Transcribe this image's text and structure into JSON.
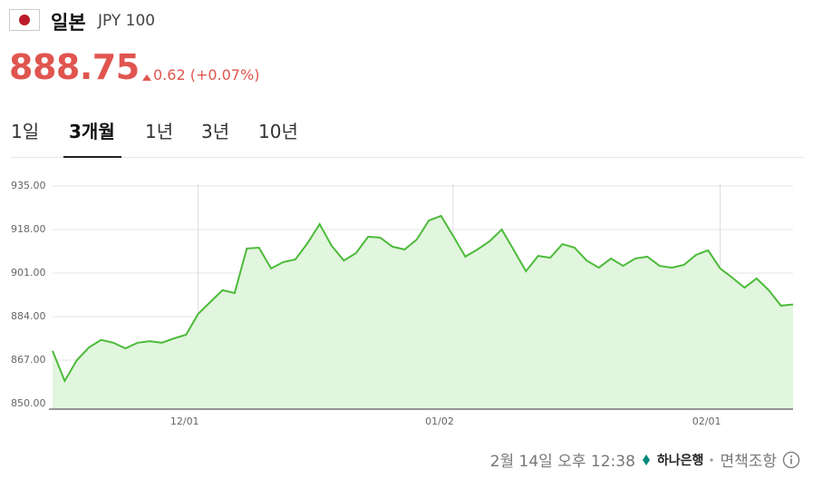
{
  "header": {
    "name": "일본",
    "code": "JPY 100",
    "price": "888.75",
    "change": "0.62 (+0.07%)"
  },
  "tabs": [
    {
      "label": "1일",
      "active": false
    },
    {
      "label": "3개월",
      "active": true
    },
    {
      "label": "1년",
      "active": false
    },
    {
      "label": "3년",
      "active": false
    },
    {
      "label": "10년",
      "active": false
    }
  ],
  "chart_data": {
    "type": "line",
    "ylim": [
      850,
      935
    ],
    "yticks": [
      {
        "value": 850,
        "label": "850.00"
      },
      {
        "value": 867,
        "label": "867.00"
      },
      {
        "value": 884,
        "label": "884.00"
      },
      {
        "value": 901,
        "label": "901.00"
      },
      {
        "value": 918,
        "label": "918.00"
      },
      {
        "value": 935,
        "label": "935.00"
      }
    ],
    "grid": true,
    "categories": [
      null,
      null,
      null,
      null,
      null,
      null,
      null,
      null,
      null,
      null,
      null,
      null,
      "12/01",
      null,
      null,
      null,
      null,
      null,
      null,
      null,
      null,
      null,
      null,
      null,
      null,
      null,
      null,
      null,
      null,
      null,
      null,
      null,
      null,
      "01/02",
      null,
      null,
      null,
      null,
      null,
      null,
      null,
      null,
      null,
      null,
      null,
      null,
      null,
      null,
      null,
      null,
      null,
      null,
      null,
      null,
      null,
      "02/01",
      null,
      null,
      null,
      null,
      null,
      null
    ],
    "series": [
      {
        "color": "#4cbb3a",
        "fill": "#e2f5de",
        "values": [
          870.6,
          858.9,
          867.0,
          872.0,
          874.9,
          873.8,
          871.6,
          873.8,
          874.4,
          873.8,
          875.5,
          876.9,
          885.1,
          889.7,
          894.3,
          893.2,
          910.6,
          910.9,
          902.8,
          905.3,
          906.3,
          912.7,
          920.1,
          911.6,
          905.9,
          908.8,
          915.2,
          914.8,
          911.3,
          910.2,
          914.1,
          921.5,
          923.3,
          915.5,
          907.4,
          910.2,
          913.4,
          918.0,
          909.9,
          901.7,
          907.7,
          907.0,
          912.3,
          910.9,
          905.9,
          903.1,
          906.7,
          903.8,
          906.7,
          907.4,
          903.8,
          903.1,
          904.2,
          908.1,
          909.9,
          902.8,
          899.2,
          895.3,
          898.9,
          894.3,
          888.3,
          888.75
        ]
      }
    ]
  },
  "footer": {
    "timestamp": "2월 14일 오후 12:38",
    "bank": "하나은행",
    "disclaimer": "면책조항"
  }
}
